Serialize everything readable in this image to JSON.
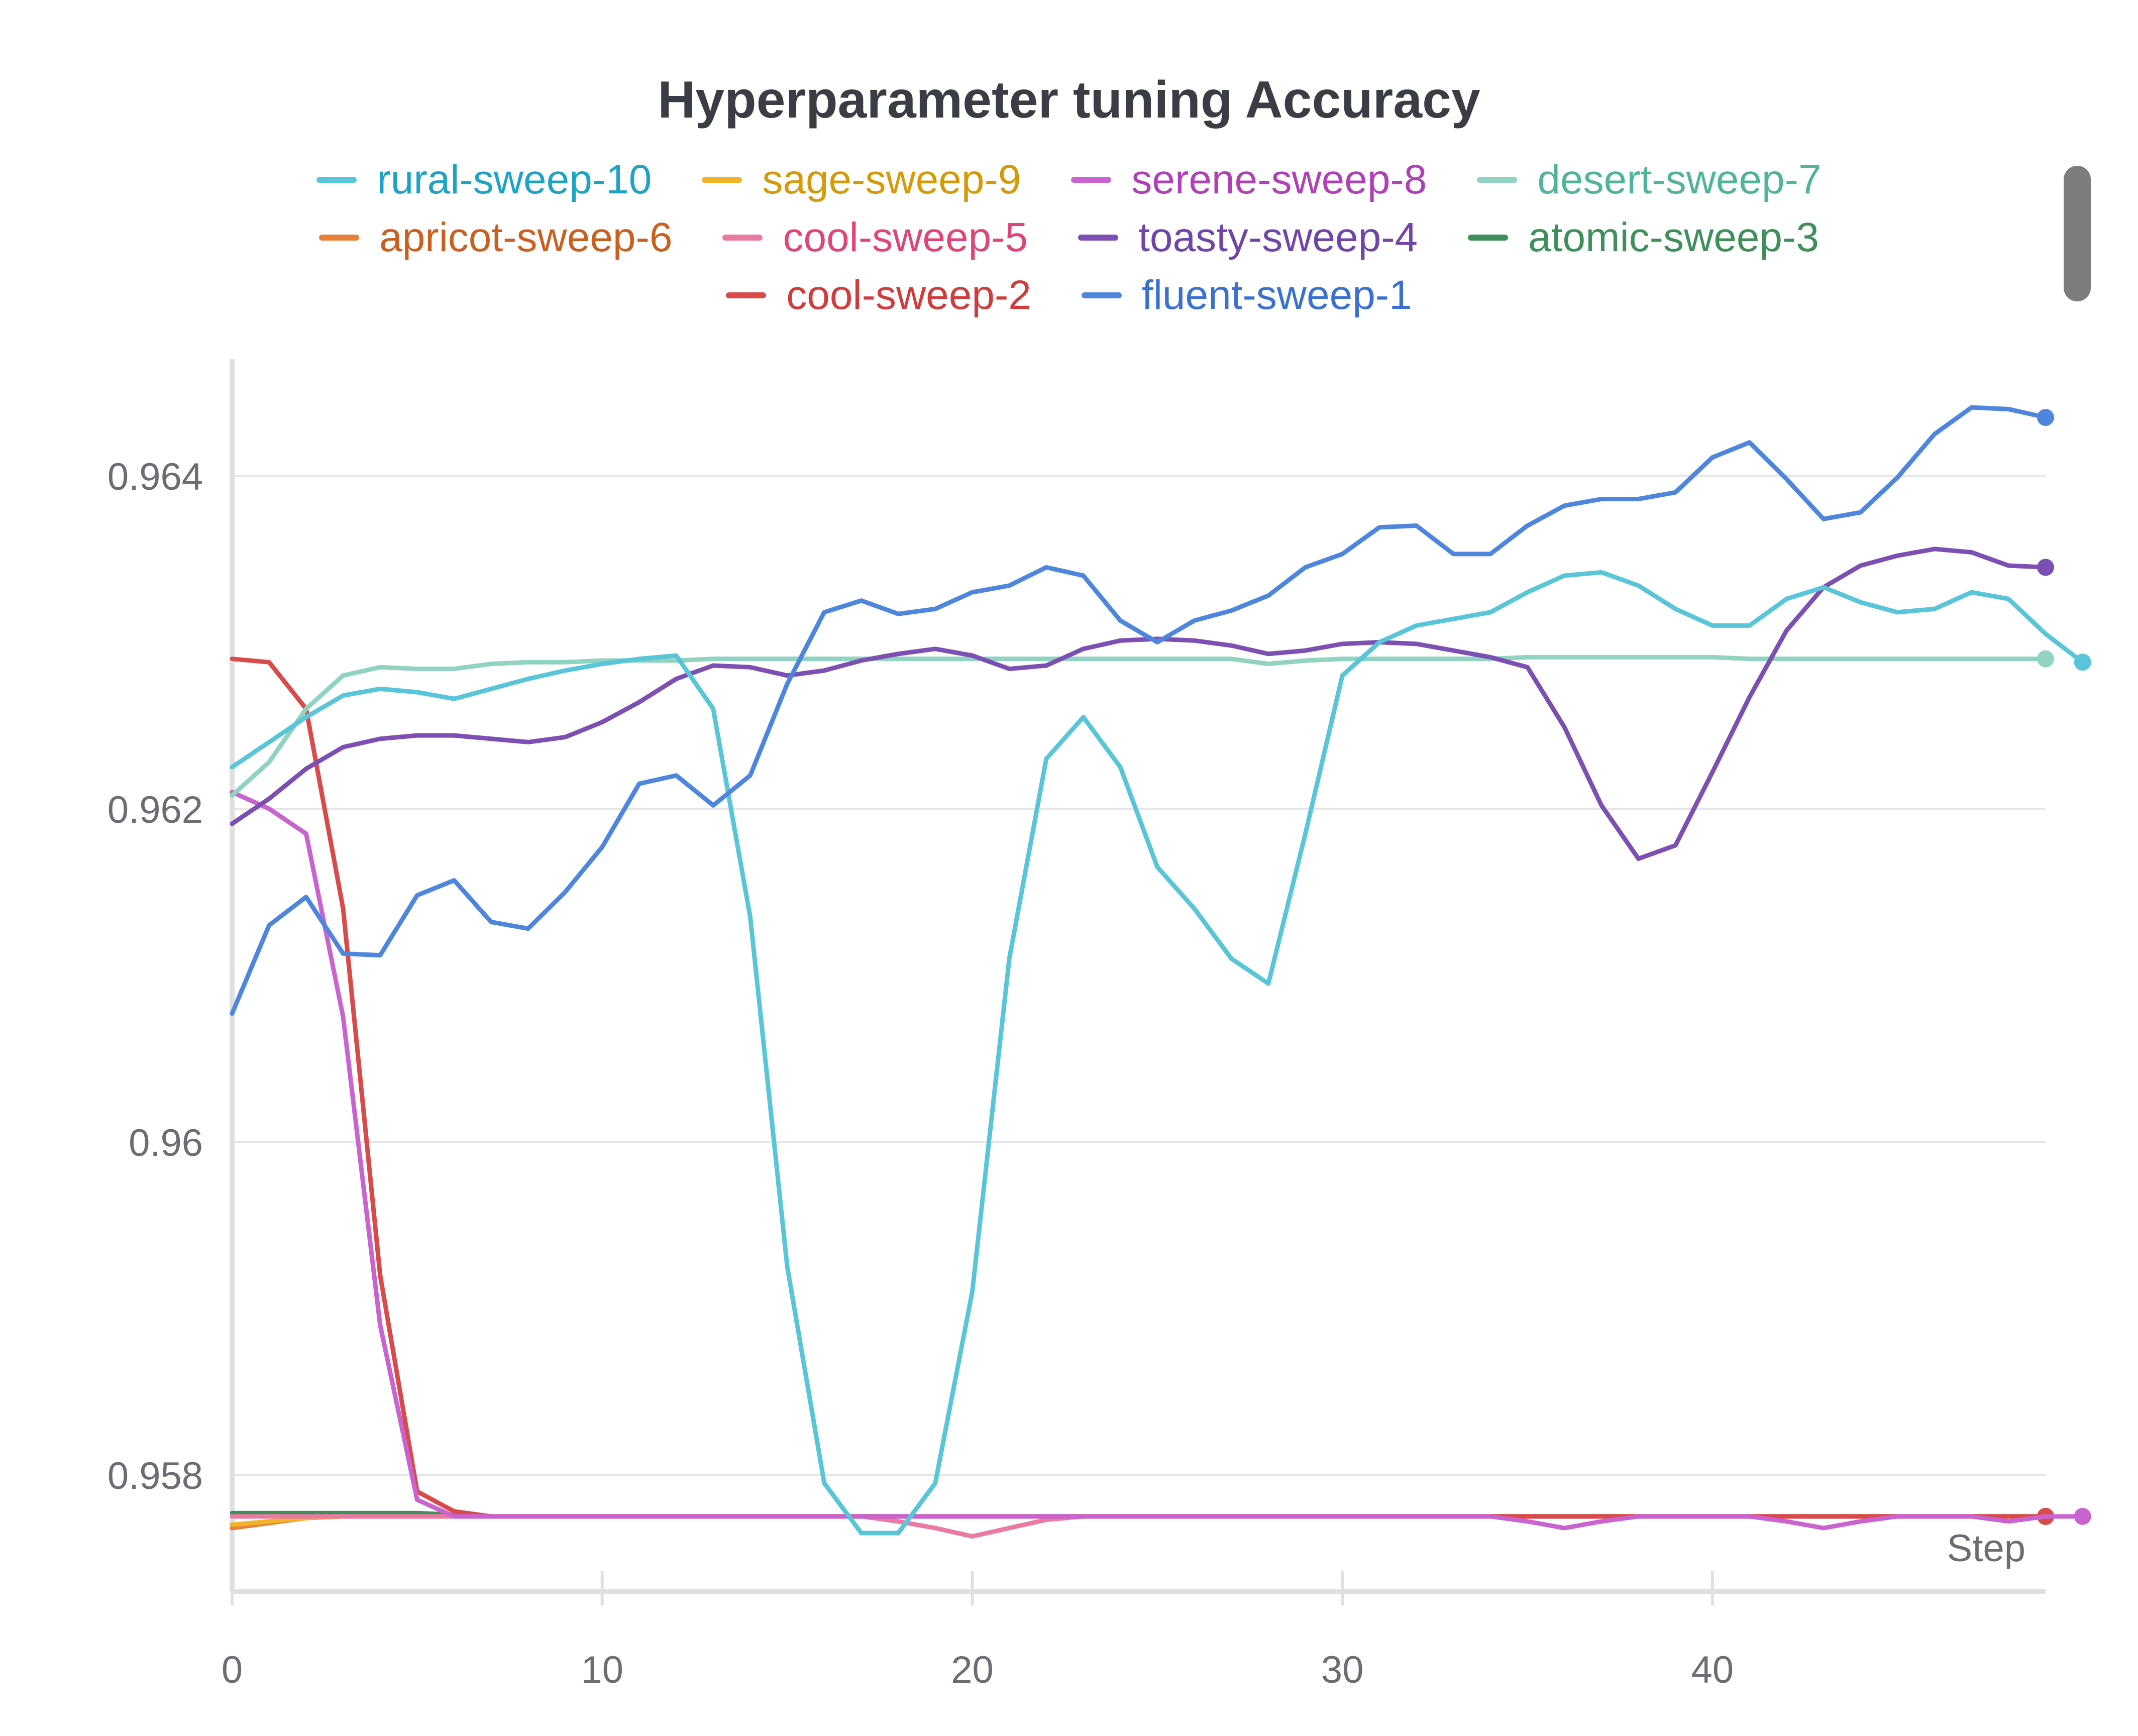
{
  "chart_data": {
    "type": "line",
    "title": "Hyperparameter tuning Accuracy",
    "xlabel": "Step",
    "ylabel": "",
    "xlim": [
      0,
      49
    ],
    "ylim": [
      0.9573,
      0.9647
    ],
    "x_ticks": [
      "0",
      "10",
      "20",
      "30",
      "40"
    ],
    "y_ticks": [
      "0.964",
      "0.962",
      "0.96",
      "0.958"
    ],
    "grid": true,
    "legend_position": "top",
    "series": [
      {
        "name": "rural-sweep-10",
        "color": "#58c5d8",
        "text_color": "#1fa3c4",
        "values": [
          0.96225,
          0.9624,
          0.96255,
          0.96268,
          0.96272,
          0.9627,
          0.96266,
          0.96272,
          0.96278,
          0.96283,
          0.96287,
          0.9629,
          0.96292,
          0.9626,
          0.96135,
          0.95925,
          0.95795,
          0.95765,
          0.95765,
          0.95795,
          0.9591,
          0.9611,
          0.9623,
          0.96255,
          0.96225,
          0.96165,
          0.9614,
          0.9611,
          0.96095,
          0.96185,
          0.9628,
          0.963,
          0.9631,
          0.96314,
          0.96318,
          0.9633,
          0.9634,
          0.96342,
          0.96334,
          0.9632,
          0.9631,
          0.9631,
          0.96326,
          0.96333,
          0.96324,
          0.96318,
          0.9632,
          0.9633,
          0.96326,
          0.96305,
          0.96288
        ]
      },
      {
        "name": "sage-sweep-9",
        "color": "#f0b429",
        "text_color": "#d69a07",
        "values": [
          0.9577,
          0.95772,
          0.95774,
          0.95775,
          0.95775,
          0.95775,
          0.95775,
          0.95775,
          0.95775,
          0.95775,
          0.95775,
          0.95775,
          0.95775,
          0.95775,
          0.95775,
          0.95775,
          0.95775,
          0.95775,
          0.95775,
          0.95775,
          0.95775,
          0.95775,
          0.95775,
          0.95775,
          0.95775,
          0.95775,
          0.95775,
          0.95775,
          0.95775,
          0.95775,
          0.95775,
          0.95775,
          0.95775,
          0.95775,
          0.95775,
          0.95775,
          0.95775,
          0.95775,
          0.95775,
          0.95775,
          0.95775,
          0.95775,
          0.95775,
          0.95775,
          0.95775,
          0.95775,
          0.95775,
          0.95775,
          0.95775,
          0.95775
        ]
      },
      {
        "name": "serene-sweep-8",
        "color": "#c963cf",
        "text_color": "#b13fb8",
        "values": [
          0.9621,
          0.962,
          0.96185,
          0.96075,
          0.9589,
          0.95785,
          0.95775,
          0.95775,
          0.95775,
          0.95775,
          0.95775,
          0.95775,
          0.95775,
          0.95775,
          0.95775,
          0.95775,
          0.95775,
          0.95775,
          0.95775,
          0.95775,
          0.95775,
          0.95775,
          0.95775,
          0.95775,
          0.95775,
          0.95775,
          0.95775,
          0.95775,
          0.95775,
          0.95775,
          0.95775,
          0.95775,
          0.95775,
          0.95775,
          0.95775,
          0.95772,
          0.95768,
          0.95772,
          0.95775,
          0.95775,
          0.95775,
          0.95775,
          0.95772,
          0.95768,
          0.95772,
          0.95775,
          0.95775,
          0.95775,
          0.95772,
          0.95775,
          0.95775
        ]
      },
      {
        "name": "desert-sweep-7",
        "color": "#8fd3c0",
        "text_color": "#4fb596",
        "values": [
          0.96208,
          0.96228,
          0.9626,
          0.9628,
          0.96285,
          0.96284,
          0.96284,
          0.96287,
          0.96288,
          0.96288,
          0.96289,
          0.96289,
          0.96289,
          0.9629,
          0.9629,
          0.9629,
          0.9629,
          0.9629,
          0.9629,
          0.9629,
          0.9629,
          0.9629,
          0.9629,
          0.9629,
          0.9629,
          0.9629,
          0.9629,
          0.9629,
          0.96287,
          0.96289,
          0.9629,
          0.9629,
          0.9629,
          0.9629,
          0.9629,
          0.96291,
          0.96291,
          0.96291,
          0.96291,
          0.96291,
          0.96291,
          0.9629,
          0.9629,
          0.9629,
          0.9629,
          0.9629,
          0.9629,
          0.9629,
          0.9629,
          0.9629
        ]
      },
      {
        "name": "apricot-sweep-6",
        "color": "#e8803a",
        "text_color": "#c96020",
        "values": [
          0.95768,
          0.95771,
          0.95774,
          0.95775,
          0.95775,
          0.95775,
          0.95775,
          0.95775,
          0.95775,
          0.95775,
          0.95775,
          0.95775,
          0.95775,
          0.95775,
          0.95775,
          0.95775,
          0.95775,
          0.95775,
          0.95775,
          0.95775,
          0.95775,
          0.95775,
          0.95775,
          0.95775,
          0.95775,
          0.95775,
          0.95775,
          0.95775,
          0.95775,
          0.95775,
          0.95775,
          0.95775,
          0.95775,
          0.95775,
          0.95775,
          0.95775,
          0.95775,
          0.95775,
          0.95775,
          0.95775,
          0.95775,
          0.95775,
          0.95775,
          0.95775,
          0.95775,
          0.95775,
          0.95775,
          0.95775,
          0.95775,
          0.95775
        ]
      },
      {
        "name": "cool-sweep-5",
        "color": "#ea7aa2",
        "text_color": "#e0457a",
        "values": [
          0.95775,
          0.95775,
          0.95775,
          0.95775,
          0.95775,
          0.95775,
          0.95775,
          0.95775,
          0.95775,
          0.95775,
          0.95775,
          0.95775,
          0.95775,
          0.95775,
          0.95775,
          0.95775,
          0.95775,
          0.95775,
          0.95772,
          0.95768,
          0.95763,
          0.95768,
          0.95773,
          0.95775,
          0.95775,
          0.95775,
          0.95775,
          0.95775,
          0.95775,
          0.95775,
          0.95775,
          0.95775,
          0.95775,
          0.95775,
          0.95775,
          0.95775,
          0.95775,
          0.95775,
          0.95775,
          0.95775,
          0.95775,
          0.95775,
          0.95775,
          0.95775,
          0.95775,
          0.95775,
          0.95775,
          0.95775,
          0.95775,
          0.95775
        ]
      },
      {
        "name": "toasty-sweep-4",
        "color": "#7c4fb3",
        "text_color": "#6f45a8",
        "values": [
          0.96191,
          0.96206,
          0.96224,
          0.96237,
          0.96242,
          0.96244,
          0.96244,
          0.96242,
          0.9624,
          0.96243,
          0.96252,
          0.96264,
          0.96278,
          0.96286,
          0.96285,
          0.9628,
          0.96283,
          0.96289,
          0.96293,
          0.96296,
          0.96292,
          0.96284,
          0.96286,
          0.96296,
          0.96301,
          0.96302,
          0.96301,
          0.96298,
          0.96293,
          0.96295,
          0.96299,
          0.963,
          0.96299,
          0.96295,
          0.96291,
          0.96285,
          0.96249,
          0.96202,
          0.9617,
          0.96178,
          0.96222,
          0.96267,
          0.96307,
          0.96333,
          0.96346,
          0.96352,
          0.96356,
          0.96354,
          0.96346,
          0.96345
        ]
      },
      {
        "name": "atomic-sweep-3",
        "color": "#3f8f5a",
        "text_color": "#3f8f5a",
        "values": [
          0.95777,
          0.95777,
          0.95777,
          0.95777,
          0.95777,
          0.95777,
          0.95776,
          0.95775,
          0.95775,
          0.95775,
          0.95775,
          0.95775,
          0.95775,
          0.95775,
          0.95775,
          0.95775,
          0.95775,
          0.95775,
          0.95775,
          0.95775,
          0.95775,
          0.95775,
          0.95775,
          0.95775,
          0.95775,
          0.95775,
          0.95775,
          0.95775,
          0.95775,
          0.95775,
          0.95775,
          0.95775,
          0.95775,
          0.95775,
          0.95775,
          0.95775,
          0.95775,
          0.95775,
          0.95775,
          0.95775,
          0.95775,
          0.95775,
          0.95775,
          0.95775,
          0.95775,
          0.95775,
          0.95775,
          0.95775,
          0.95775,
          0.95775
        ]
      },
      {
        "name": "cool-sweep-2",
        "color": "#d94a4a",
        "text_color": "#d03b3b",
        "values": [
          0.9629,
          0.96288,
          0.9626,
          0.9614,
          0.9592,
          0.9579,
          0.95778,
          0.95775,
          0.95775,
          0.95775,
          0.95775,
          0.95775,
          0.95775,
          0.95775,
          0.95775,
          0.95775,
          0.95775,
          0.95775,
          0.95775,
          0.95775,
          0.95775,
          0.95775,
          0.95775,
          0.95775,
          0.95775,
          0.95775,
          0.95775,
          0.95775,
          0.95775,
          0.95775,
          0.95775,
          0.95775,
          0.95775,
          0.95775,
          0.95775,
          0.95775,
          0.95775,
          0.95775,
          0.95775,
          0.95775,
          0.95775,
          0.95775,
          0.95775,
          0.95775,
          0.95775,
          0.95775,
          0.95775,
          0.95775,
          0.95775,
          0.95775
        ]
      },
      {
        "name": "fluent-sweep-1",
        "color": "#4f86dd",
        "text_color": "#3a70d0",
        "values": [
          0.96077,
          0.9613,
          0.96147,
          0.96113,
          0.96112,
          0.96148,
          0.96157,
          0.96132,
          0.96128,
          0.9615,
          0.96177,
          0.96215,
          0.9622,
          0.96202,
          0.9622,
          0.96275,
          0.96318,
          0.96325,
          0.96317,
          0.9632,
          0.9633,
          0.96334,
          0.96345,
          0.9634,
          0.96313,
          0.963,
          0.96313,
          0.96319,
          0.96328,
          0.96345,
          0.96353,
          0.96369,
          0.9637,
          0.96353,
          0.96353,
          0.9637,
          0.96382,
          0.96386,
          0.96386,
          0.9639,
          0.96411,
          0.9642,
          0.96398,
          0.96374,
          0.96378,
          0.96399,
          0.96425,
          0.96441,
          0.9644,
          0.96435
        ]
      }
    ]
  }
}
